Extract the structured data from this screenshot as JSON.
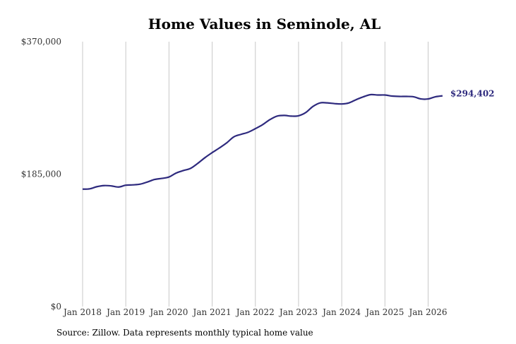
{
  "chart_data": {
    "type": "line",
    "title": "Home Values in Seminole, AL",
    "source": "Source: Zillow. Data represents monthly typical home value",
    "ylim": [
      0,
      370000
    ],
    "yticks": [
      {
        "value": 0,
        "label": "$0"
      },
      {
        "value": 185000,
        "label": "$185,000"
      },
      {
        "value": 370000,
        "label": "$370,000"
      }
    ],
    "xlim": [
      "2018-01",
      "2026-06"
    ],
    "xticks": [
      {
        "date": "2018-01",
        "label": "Jan 2018"
      },
      {
        "date": "2019-01",
        "label": "Jan 2019"
      },
      {
        "date": "2020-01",
        "label": "Jan 2020"
      },
      {
        "date": "2021-01",
        "label": "Jan 2021"
      },
      {
        "date": "2022-01",
        "label": "Jan 2022"
      },
      {
        "date": "2023-01",
        "label": "Jan 2023"
      },
      {
        "date": "2024-01",
        "label": "Jan 2024"
      },
      {
        "date": "2025-01",
        "label": "Jan 2025"
      },
      {
        "date": "2026-01",
        "label": "Jan 2026"
      }
    ],
    "grid": "vertical",
    "line_color": "#2e2a7e",
    "end_label": "$294,402",
    "series": [
      {
        "points": [
          [
            "2018-01",
            164000
          ],
          [
            "2018-03",
            164500
          ],
          [
            "2018-05",
            167500
          ],
          [
            "2018-07",
            169000
          ],
          [
            "2018-09",
            168500
          ],
          [
            "2018-11",
            167000
          ],
          [
            "2019-01",
            169500
          ],
          [
            "2019-03",
            170000
          ],
          [
            "2019-05",
            171000
          ],
          [
            "2019-07",
            174000
          ],
          [
            "2019-09",
            177500
          ],
          [
            "2019-11",
            179000
          ],
          [
            "2020-01",
            181000
          ],
          [
            "2020-03",
            186500
          ],
          [
            "2020-05",
            190000
          ],
          [
            "2020-07",
            193000
          ],
          [
            "2020-09",
            200000
          ],
          [
            "2020-11",
            208000
          ],
          [
            "2021-01",
            215000
          ],
          [
            "2021-03",
            221500
          ],
          [
            "2021-05",
            228500
          ],
          [
            "2021-07",
            237000
          ],
          [
            "2021-09",
            240500
          ],
          [
            "2021-11",
            243500
          ],
          [
            "2022-01",
            248500
          ],
          [
            "2022-03",
            254000
          ],
          [
            "2022-05",
            261000
          ],
          [
            "2022-07",
            266000
          ],
          [
            "2022-09",
            267000
          ],
          [
            "2022-11",
            266000
          ],
          [
            "2023-01",
            266500
          ],
          [
            "2023-03",
            271000
          ],
          [
            "2023-05",
            279500
          ],
          [
            "2023-07",
            284500
          ],
          [
            "2023-09",
            284500
          ],
          [
            "2023-11",
            283500
          ],
          [
            "2024-01",
            283000
          ],
          [
            "2024-03",
            284500
          ],
          [
            "2024-05",
            289000
          ],
          [
            "2024-07",
            293000
          ],
          [
            "2024-09",
            296000
          ],
          [
            "2024-11",
            295500
          ],
          [
            "2025-01",
            295500
          ],
          [
            "2025-03",
            294000
          ],
          [
            "2025-05",
            293500
          ],
          [
            "2025-07",
            293500
          ],
          [
            "2025-09",
            293000
          ],
          [
            "2025-11",
            290000
          ],
          [
            "2026-01",
            290000
          ],
          [
            "2026-03",
            293000
          ],
          [
            "2026-05",
            294402
          ]
        ]
      }
    ]
  }
}
